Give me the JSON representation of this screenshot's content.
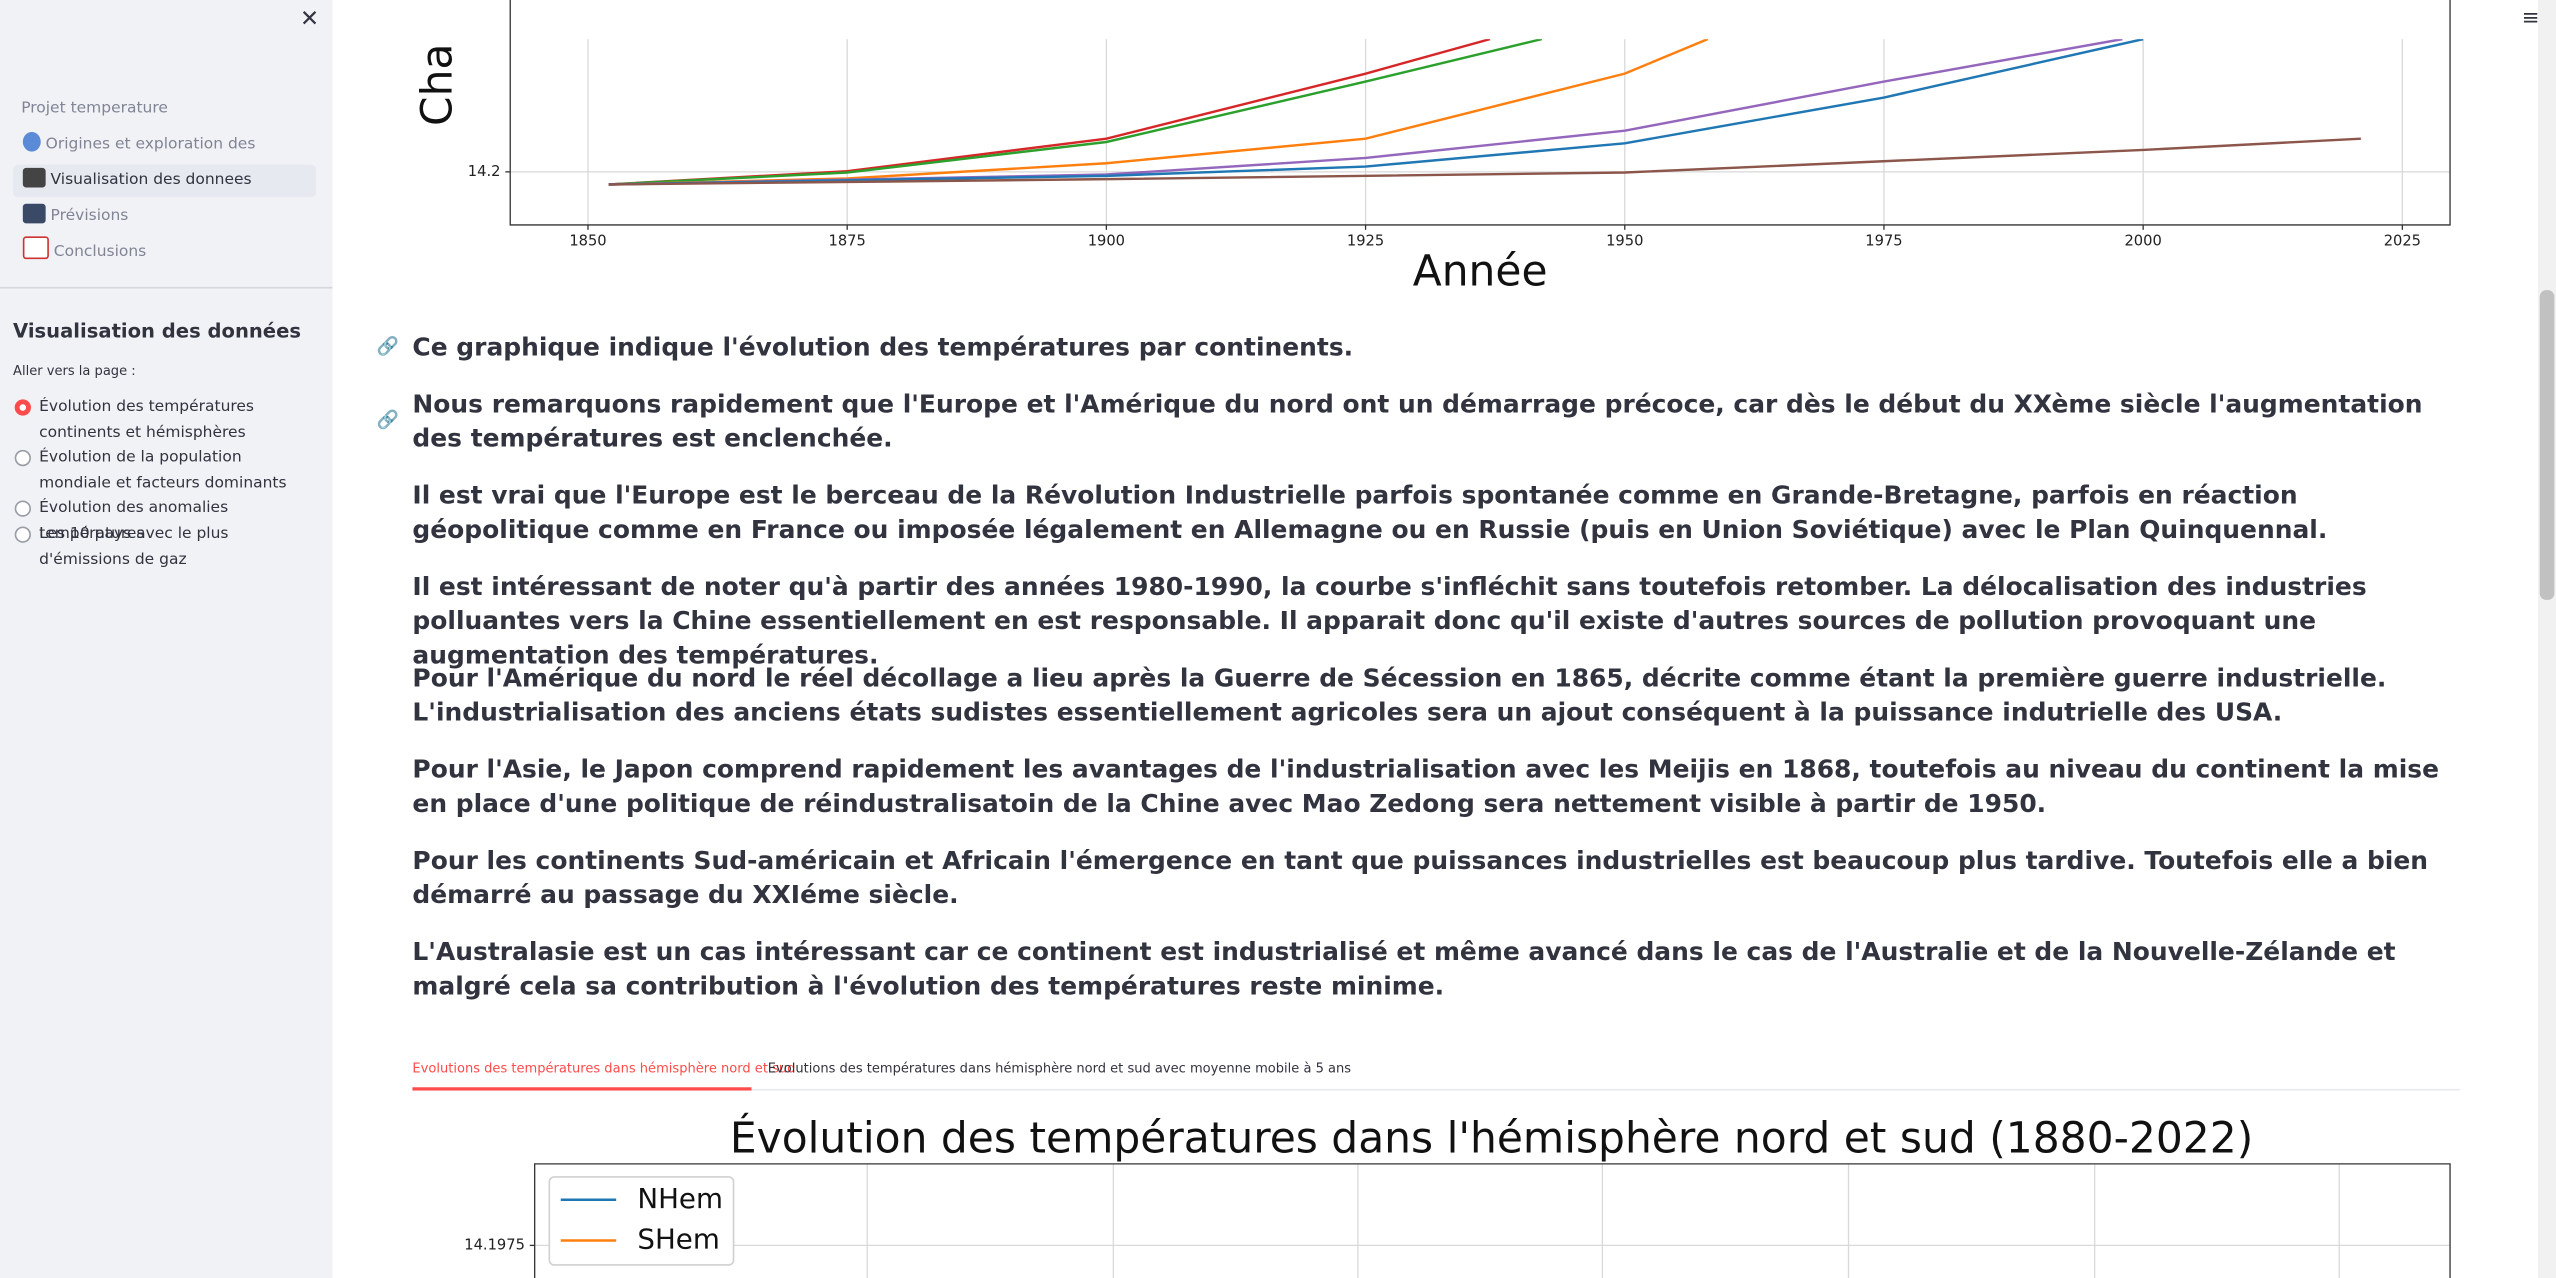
{
  "sidebar": {
    "nav_title": "Projet temperature",
    "nav_items": [
      "Origines et exploration des données",
      "Visualisation des donnees",
      "Prévisions",
      "Conclusions"
    ],
    "section_title": "Visualisation des données",
    "radio_label": "Aller vers la page :",
    "radio_options": [
      "Évolution des températures continents et hémisphères",
      "Évolution de la population mondiale et facteurs dominants",
      "Évolution des anomalies températures",
      "Les 10 pays avec le plus d'émissions de gaz"
    ]
  },
  "paragraphs": [
    "Ce graphique indique l'évolution des températures par continents.",
    "Nous remarquons rapidement que l'Europe et l'Amérique du nord ont un démarrage précoce, car dès le début du XXème siècle l'augmentation des températures est enclenchée.",
    "Il est vrai que l'Europe est le berceau de la Révolution Industrielle parfois spontanée comme en Grande-Bretagne, parfois en réaction géopolitique comme en France ou imposée légalement en Allemagne ou en Russie (puis en Union Soviétique) avec le Plan Quinquennal.",
    "Il est intéressant de noter qu'à partir des années 1980-1990, la courbe s'infléchit sans toutefois retomber. La délocalisation des industries polluantes vers la Chine essentiellement en est responsable. Il apparait donc qu'il existe d'autres sources de pollution provoquant une augmentation des températures.",
    "Pour l'Amérique du nord le réel décollage a lieu après la Guerre de Sécession en 1865, décrite comme étant la première guerre industrielle. L'industrialisation des anciens états sudistes essentiellement agricoles sera un ajout conséquent à la puissance indutrielle des USA.",
    "Pour l'Asie, le Japon comprend rapidement les avantages de l'industrialisation avec les Meijis en 1868, toutefois au niveau du continent la mise en place d'une politique de réindustralisatoin de la Chine avec Mao Zedong sera nettement visible à partir de 1950.",
    "Pour les continents Sud-américain et Africain l'émergence en tant que puissances industrielles est beaucoup plus tardive. Toutefois elle a bien démarré au passage du XXIéme siècle.",
    "L'Australasie est un cas intéressant car ce continent est industrialisé et même avancé dans le cas de l'Australie et de la Nouvelle-Zélande et malgré cela sa contribution à l'évolution des températures reste minime."
  ],
  "tabs": [
    "Evolutions des températures dans hémisphère nord et sud",
    "Evolutions des températures dans hémisphère nord et sud avec moyenne mobile à 5 ans"
  ],
  "chart_data": [
    {
      "type": "line",
      "xlabel": "Année",
      "ylabel": "Cha",
      "xlim": [
        1842.5,
        2029.6
      ],
      "ylim": [
        14.12,
        14.4
      ],
      "xticks": [
        1850,
        1875,
        1900,
        1925,
        1950,
        1975,
        2000,
        2025
      ],
      "yticks": [
        14.2
      ],
      "grid": true,
      "series": [
        {
          "color": "#d62728",
          "x": [
            1852,
            1875,
            1900,
            1925,
            1937
          ],
          "values": [
            14.181,
            14.201,
            14.25,
            14.348,
            14.4
          ]
        },
        {
          "color": "#2ca02c",
          "x": [
            1852,
            1875,
            1900,
            1925,
            1942
          ],
          "values": [
            14.181,
            14.199,
            14.245,
            14.336,
            14.4
          ]
        },
        {
          "color": "#ff7f0e",
          "x": [
            1852,
            1875,
            1900,
            1925,
            1950,
            1958
          ],
          "values": [
            14.181,
            14.19,
            14.213,
            14.25,
            14.348,
            14.4
          ]
        },
        {
          "color": "#9467bd",
          "x": [
            1852,
            1900,
            1925,
            1950,
            1975,
            1998
          ],
          "values": [
            14.181,
            14.196,
            14.221,
            14.262,
            14.336,
            14.4
          ]
        },
        {
          "color": "#1f77b4",
          "x": [
            1852,
            1900,
            1925,
            1950,
            1975,
            2000
          ],
          "values": [
            14.181,
            14.194,
            14.208,
            14.243,
            14.312,
            14.4
          ]
        },
        {
          "color": "#8c564b",
          "x": [
            1852,
            1900,
            1950,
            2000,
            2021
          ],
          "values": [
            14.181,
            14.189,
            14.199,
            14.233,
            14.25
          ]
        }
      ]
    },
    {
      "type": "line",
      "title": "Évolution des températures dans l'hémisphère nord et sud (1880-2022)",
      "ylim": [
        14.1955,
        14.2
      ],
      "yticks": [
        14.1975
      ],
      "grid": true,
      "series": [
        {
          "name": "NHem",
          "color": "#1f77b4"
        },
        {
          "name": "SHem",
          "color": "#ff7f0e"
        }
      ]
    }
  ]
}
